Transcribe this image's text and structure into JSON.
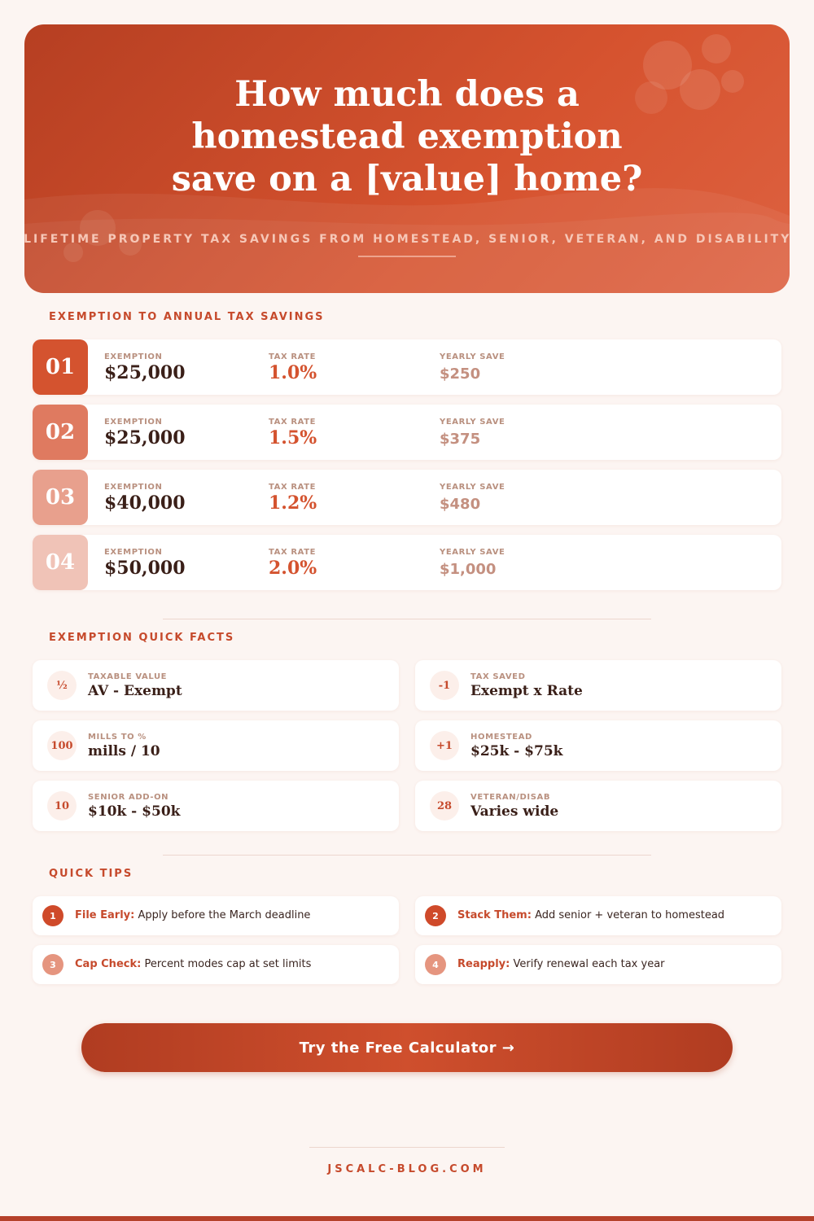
{
  "header": {
    "title": "How much does a homestead exemption save on a [value] home?",
    "subtitle": "Annual and lifetime property tax savings from homestead, senior, veteran, and disability exemptions"
  },
  "savings": {
    "heading": "Exemption to annual tax savings",
    "labels": {
      "exemption": "Exemption",
      "rate": "Tax rate",
      "save": "Yearly save"
    },
    "rows": [
      {
        "number": "01",
        "exemption": "$25,000",
        "rate": "1.0%",
        "save": "$250"
      },
      {
        "number": "02",
        "exemption": "$25,000",
        "rate": "1.5%",
        "save": "$375"
      },
      {
        "number": "03",
        "exemption": "$40,000",
        "rate": "1.2%",
        "save": "$480"
      },
      {
        "number": "04",
        "exemption": "$50,000",
        "rate": "2.0%",
        "save": "$1,000"
      }
    ]
  },
  "facts": {
    "heading": "Exemption quick facts",
    "items": [
      {
        "icon": "½",
        "label": "Taxable value",
        "value": "AV - Exempt"
      },
      {
        "icon": "-1",
        "label": "Tax saved",
        "value": "Exempt x Rate"
      },
      {
        "icon": "100",
        "label": "Mills to %",
        "value": "mills / 10"
      },
      {
        "icon": "+1",
        "label": "Homestead",
        "value": "$25k - $75k"
      },
      {
        "icon": "10",
        "label": "Senior add-on",
        "value": "$10k - $50k"
      },
      {
        "icon": "28",
        "label": "Veteran/Disab",
        "value": "Varies wide"
      }
    ]
  },
  "tips": {
    "heading": "Quick tips",
    "items": [
      {
        "number": "1",
        "label": "File Early:",
        "text": "Apply before the March deadline"
      },
      {
        "number": "2",
        "label": "Stack Them:",
        "text": "Add senior + veteran to homestead"
      },
      {
        "number": "3",
        "label": "Cap Check:",
        "text": "Percent modes cap at set limits"
      },
      {
        "number": "4",
        "label": "Reapply:",
        "text": "Verify renewal each tax year"
      }
    ]
  },
  "button": "Try the Free Calculator →",
  "footer": "jscalc-blog.com"
}
